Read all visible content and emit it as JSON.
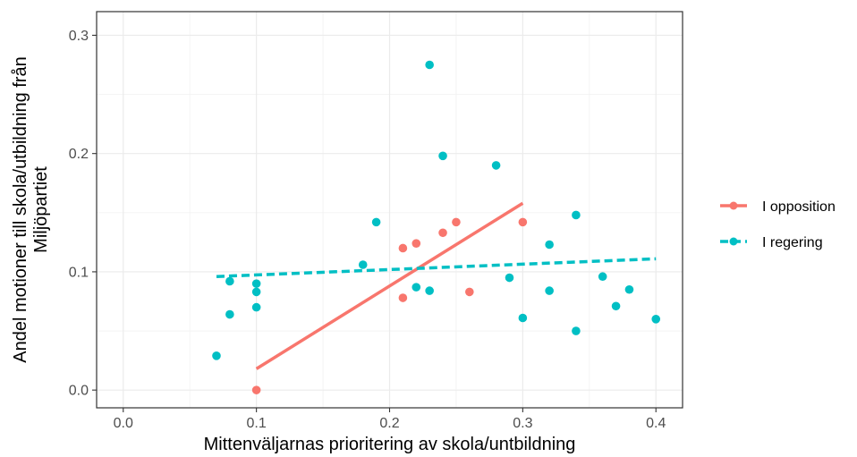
{
  "chart_data": {
    "type": "scatter",
    "xlabel": "Mittenväljarnas prioritering av skola/untbildning",
    "ylabel": [
      "Andel motioner till skola/utbildning från",
      "Miljöpartiet"
    ],
    "xlim": [
      -0.02,
      0.42
    ],
    "ylim": [
      -0.015,
      0.32
    ],
    "x_ticks": [
      0.0,
      0.1,
      0.2,
      0.3,
      0.4
    ],
    "x_tick_labels": [
      "0.0",
      "0.1",
      "0.2",
      "0.3",
      "0.4"
    ],
    "y_ticks": [
      0.0,
      0.1,
      0.2,
      0.3
    ],
    "y_tick_labels": [
      "0.0",
      "0.1",
      "0.2",
      "0.3"
    ],
    "grid": true,
    "legend_position": "right",
    "series": [
      {
        "name": "I opposition",
        "color": "#F8766D",
        "line_style": "solid",
        "points": [
          {
            "x": 0.1,
            "y": 0.0
          },
          {
            "x": 0.21,
            "y": 0.12
          },
          {
            "x": 0.21,
            "y": 0.078
          },
          {
            "x": 0.22,
            "y": 0.124
          },
          {
            "x": 0.24,
            "y": 0.133
          },
          {
            "x": 0.25,
            "y": 0.142
          },
          {
            "x": 0.26,
            "y": 0.083
          },
          {
            "x": 0.3,
            "y": 0.142
          }
        ],
        "fit": {
          "x": [
            0.1,
            0.3
          ],
          "y": [
            0.018,
            0.158
          ]
        }
      },
      {
        "name": "I regering",
        "color": "#00BFC4",
        "line_style": "dashed",
        "points": [
          {
            "x": 0.07,
            "y": 0.029
          },
          {
            "x": 0.08,
            "y": 0.092
          },
          {
            "x": 0.08,
            "y": 0.064
          },
          {
            "x": 0.1,
            "y": 0.09
          },
          {
            "x": 0.1,
            "y": 0.083
          },
          {
            "x": 0.1,
            "y": 0.07
          },
          {
            "x": 0.18,
            "y": 0.106
          },
          {
            "x": 0.19,
            "y": 0.142
          },
          {
            "x": 0.22,
            "y": 0.087
          },
          {
            "x": 0.23,
            "y": 0.275
          },
          {
            "x": 0.23,
            "y": 0.084
          },
          {
            "x": 0.24,
            "y": 0.198
          },
          {
            "x": 0.28,
            "y": 0.19
          },
          {
            "x": 0.29,
            "y": 0.095
          },
          {
            "x": 0.3,
            "y": 0.061
          },
          {
            "x": 0.32,
            "y": 0.123
          },
          {
            "x": 0.32,
            "y": 0.084
          },
          {
            "x": 0.34,
            "y": 0.148
          },
          {
            "x": 0.34,
            "y": 0.05
          },
          {
            "x": 0.36,
            "y": 0.096
          },
          {
            "x": 0.37,
            "y": 0.071
          },
          {
            "x": 0.38,
            "y": 0.085
          },
          {
            "x": 0.4,
            "y": 0.06
          }
        ],
        "fit": {
          "x": [
            0.07,
            0.4
          ],
          "y": [
            0.096,
            0.111
          ]
        }
      }
    ]
  }
}
